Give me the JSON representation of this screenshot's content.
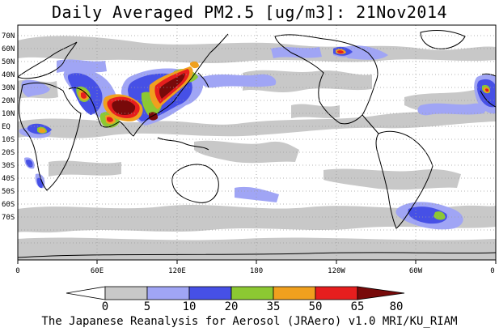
{
  "title": "Daily Averaged PM2.5 [ug/m3]: 21Nov2014",
  "lat_labels": [
    "70N",
    "60N",
    "50N",
    "40N",
    "30N",
    "20N",
    "10N",
    "EQ",
    "10S",
    "20S",
    "30S",
    "40S",
    "50S",
    "60S",
    "70S"
  ],
  "lon_labels": [
    "0",
    "60E",
    "120E",
    "180",
    "120W",
    "60W",
    "0"
  ],
  "colorbar": {
    "labels": [
      "0",
      "5",
      "10",
      "20",
      "35",
      "50",
      "65",
      "80"
    ],
    "colors": [
      "#ffffff",
      "#c8c8c8",
      "#a0a5f5",
      "#4650e6",
      "#8cc832",
      "#f0a01e",
      "#e61e1e",
      "#780a0a"
    ]
  },
  "footer": "The Japanese Reanalysis for Aerosol (JRAero) v1.0 MRI/KU_RIAM"
}
